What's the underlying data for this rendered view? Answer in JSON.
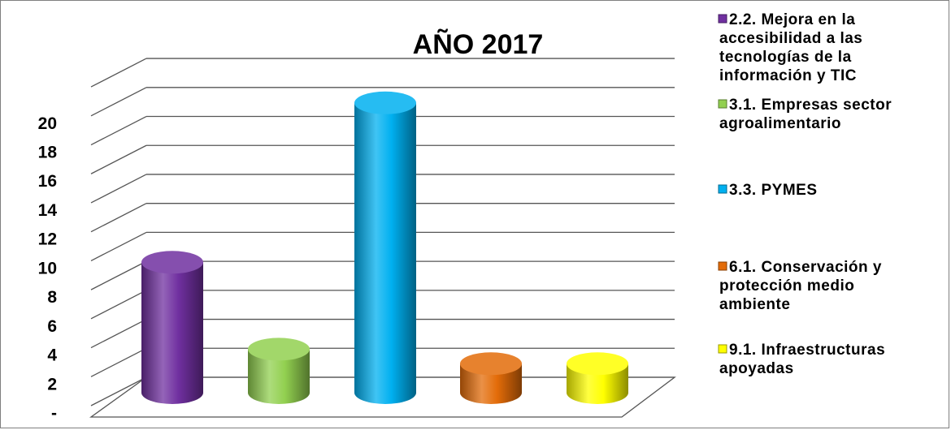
{
  "chart_data": {
    "type": "bar",
    "title": "AÑO 2017",
    "xlabel": "",
    "ylabel": "",
    "ylim": [
      0,
      22
    ],
    "yticks": [
      "-",
      "2",
      "4",
      "6",
      "8",
      "10",
      "12",
      "14",
      "16",
      "18",
      "20"
    ],
    "grid": true,
    "legend_position": "right",
    "series": [
      {
        "name": "2.2. Mejora en la accesibilidad a las tecnologías de la información y TIC",
        "value": 9,
        "color": "#7030a0"
      },
      {
        "name": "3.1. Empresas sector agroalimentario",
        "value": 3,
        "color": "#92d050"
      },
      {
        "name": "3.3. PYMES",
        "value": 20,
        "color": "#00b0f0"
      },
      {
        "name": "6.1. Conservación y protección medio ambiente",
        "value": 2,
        "color": "#e36c09"
      },
      {
        "name": "9.1. Infraestructuras apoyadas",
        "value": 2,
        "color": "#ffff00"
      }
    ]
  }
}
